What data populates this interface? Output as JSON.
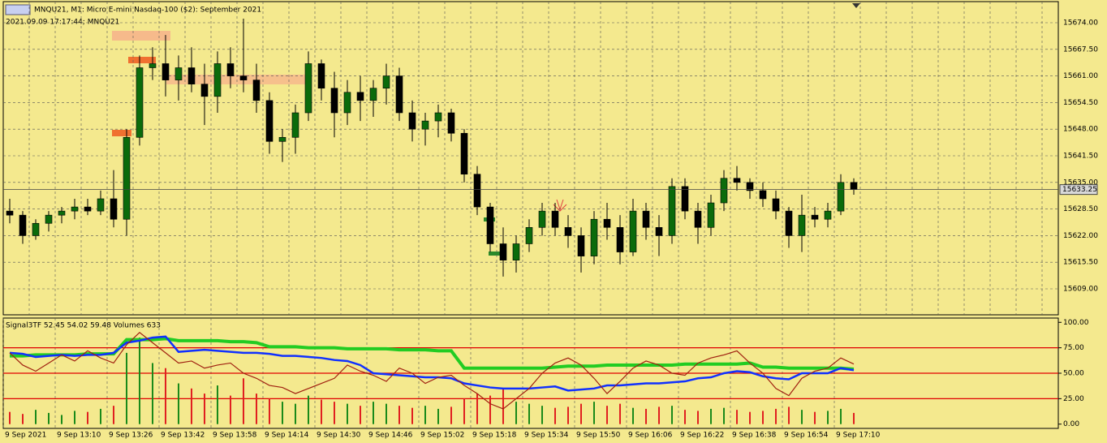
{
  "chart_data": [
    {
      "type": "candlestick",
      "title": "MNQU21, M1:  Micro E-mini Nasdaq-100 ($2): September 2021",
      "subtitle": "2021.09.09 17:17:44; MNQU21",
      "ohlc": [
        [
          15628,
          15631,
          15625,
          15627
        ],
        [
          15627,
          15628,
          15620,
          15622
        ],
        [
          15622,
          15626,
          15621,
          15625
        ],
        [
          15625,
          15628,
          15623,
          15627
        ],
        [
          15627,
          15629,
          15625,
          15628
        ],
        [
          15628,
          15631,
          15626,
          15629
        ],
        [
          15629,
          15631,
          15627,
          15628
        ],
        [
          15628,
          15633,
          15627,
          15631
        ],
        [
          15631,
          15638,
          15624,
          15626
        ],
        [
          15626,
          15648,
          15622,
          15646
        ],
        [
          15646,
          15666,
          15644,
          15663
        ],
        [
          15663,
          15668,
          15660,
          15664
        ],
        [
          15664,
          15671,
          15656,
          15660
        ],
        [
          15660,
          15666,
          15655,
          15663
        ],
        [
          15663,
          15668,
          15657,
          15659
        ],
        [
          15659,
          15664,
          15649,
          15656
        ],
        [
          15656,
          15667,
          15652,
          15664
        ],
        [
          15664,
          15668,
          15658,
          15661
        ],
        [
          15661,
          15675,
          15657,
          15660
        ],
        [
          15660,
          15664,
          15652,
          15655
        ],
        [
          15655,
          15657,
          15642,
          15645
        ],
        [
          15645,
          15648,
          15640,
          15646
        ],
        [
          15646,
          15654,
          15642,
          15652
        ],
        [
          15652,
          15667,
          15650,
          15664
        ],
        [
          15664,
          15665,
          15655,
          15658
        ],
        [
          15658,
          15662,
          15646,
          15652
        ],
        [
          15652,
          15660,
          15649,
          15657
        ],
        [
          15657,
          15661,
          15650,
          15655
        ],
        [
          15655,
          15660,
          15651,
          15658
        ],
        [
          15658,
          15664,
          15654,
          15661
        ],
        [
          15661,
          15663,
          15650,
          15652
        ],
        [
          15652,
          15655,
          15645,
          15648
        ],
        [
          15648,
          15652,
          15644,
          15650
        ],
        [
          15650,
          15654,
          15646,
          15652
        ],
        [
          15652,
          15653,
          15645,
          15647
        ],
        [
          15647,
          15648,
          15635,
          15637
        ],
        [
          15637,
          15639,
          15627,
          15629
        ],
        [
          15629,
          15630,
          15618,
          15620
        ],
        [
          15620,
          15624,
          15612,
          15616
        ],
        [
          15616,
          15622,
          15613,
          15620
        ],
        [
          15620,
          15626,
          15618,
          15624
        ],
        [
          15624,
          15630,
          15622,
          15628
        ],
        [
          15628,
          15630,
          15622,
          15624
        ],
        [
          15624,
          15627,
          15619,
          15622
        ],
        [
          15622,
          15624,
          15613,
          15617
        ],
        [
          15617,
          15628,
          15615,
          15626
        ],
        [
          15626,
          15630,
          15621,
          15624
        ],
        [
          15624,
          15627,
          15615,
          15618
        ],
        [
          15618,
          15631,
          15617,
          15628
        ],
        [
          15628,
          15630,
          15621,
          15624
        ],
        [
          15624,
          15627,
          15617,
          15622
        ],
        [
          15622,
          15636,
          15620,
          15634
        ],
        [
          15634,
          15636,
          15626,
          15628
        ],
        [
          15628,
          15630,
          15620,
          15624
        ],
        [
          15624,
          15632,
          15622,
          15630
        ],
        [
          15630,
          15638,
          15628,
          15636
        ],
        [
          15636,
          15639,
          15633,
          15635
        ],
        [
          15635,
          15636,
          15631,
          15633
        ],
        [
          15633,
          15635,
          15629,
          15631
        ],
        [
          15631,
          15633,
          15626,
          15628
        ],
        [
          15628,
          15629,
          15619,
          15622
        ],
        [
          15622,
          15632,
          15618,
          15627
        ],
        [
          15627,
          15629,
          15624,
          15626
        ],
        [
          15626,
          15630,
          15624,
          15628
        ],
        [
          15628,
          15637,
          15627,
          15635
        ],
        [
          15635,
          15636,
          15632,
          15633.25
        ]
      ],
      "bull_color": "#0b6b0b",
      "bear_color": "#000000",
      "last_price": 15633.25,
      "ylim": [
        15602.66,
        15679.15
      ],
      "yticks": [
        {
          "value": 15674,
          "label": "15674.00"
        },
        {
          "value": 15667.5,
          "label": "15667.50"
        },
        {
          "value": 15661,
          "label": "15661.00"
        },
        {
          "value": 15654.5,
          "label": "15654.50"
        },
        {
          "value": 15648,
          "label": "15648.00"
        },
        {
          "value": 15641.5,
          "label": "15641.50"
        },
        {
          "value": 15635,
          "label": "15635.00"
        },
        {
          "value": 15628.5,
          "label": "15628.50"
        },
        {
          "value": 15622,
          "label": "15622.00"
        },
        {
          "value": 15615.5,
          "label": "15615.50"
        },
        {
          "value": 15609,
          "label": "15609.00"
        }
      ],
      "grid": true
    },
    {
      "type": "indicator",
      "title": "Signal3TF 52.45 54.02 59.48 Volumes 633",
      "series": [
        {
          "color": "#22cc22",
          "values": [
            67,
            67,
            68,
            68,
            68,
            68,
            69,
            69,
            69,
            83,
            83,
            83,
            84,
            82,
            82,
            82,
            82,
            81,
            81,
            80,
            76,
            76,
            76,
            75,
            75,
            75,
            74,
            74,
            74,
            74,
            73,
            73,
            73,
            72,
            72,
            55,
            55,
            55,
            55,
            55,
            55,
            55,
            56,
            57,
            57,
            57,
            58,
            58,
            58,
            58,
            58,
            58,
            59,
            59,
            59,
            59,
            59,
            60,
            56,
            56,
            55,
            55,
            55,
            55,
            55,
            54
          ]
        },
        {
          "color": "#1030ff",
          "values": [
            70,
            69,
            66,
            67,
            68,
            67,
            68,
            68,
            70,
            80,
            82,
            85,
            86,
            71,
            72,
            73,
            72,
            71,
            70,
            70,
            69,
            67,
            67,
            66,
            65,
            63,
            62,
            58,
            50,
            49,
            48,
            47,
            46,
            46,
            45,
            40,
            38,
            36,
            35,
            35,
            35,
            36,
            37,
            33,
            34,
            35,
            38,
            38,
            39,
            40,
            40,
            41,
            42,
            45,
            46,
            50,
            52,
            51,
            47,
            45,
            44,
            50,
            50,
            50,
            55,
            53
          ]
        },
        {
          "color": "#a02010",
          "values": [
            70,
            58,
            52,
            60,
            68,
            62,
            72,
            65,
            60,
            78,
            90,
            80,
            70,
            60,
            62,
            55,
            58,
            60,
            50,
            45,
            38,
            36,
            30,
            35,
            40,
            45,
            58,
            52,
            48,
            42,
            55,
            50,
            40,
            46,
            48,
            38,
            30,
            20,
            15,
            25,
            35,
            50,
            60,
            65,
            58,
            45,
            30,
            42,
            55,
            62,
            58,
            50,
            48,
            60,
            65,
            68,
            72,
            60,
            50,
            35,
            28,
            45,
            52,
            55,
            65,
            59
          ]
        }
      ],
      "volumes": [
        12,
        10,
        14,
        11,
        9,
        13,
        12,
        15,
        18,
        70,
        85,
        60,
        55,
        40,
        35,
        30,
        38,
        28,
        45,
        30,
        25,
        22,
        20,
        28,
        24,
        22,
        20,
        18,
        22,
        20,
        18,
        16,
        18,
        15,
        17,
        25,
        30,
        28,
        35,
        22,
        20,
        18,
        16,
        17,
        20,
        22,
        18,
        20,
        16,
        15,
        17,
        18,
        14,
        13,
        15,
        16,
        14,
        12,
        13,
        15,
        17,
        14,
        12,
        13,
        15,
        11
      ],
      "volume_colors": [
        "#1a8a1a",
        "#e02020"
      ],
      "hlines": [
        75,
        50,
        25
      ],
      "hline_color": "#e00000",
      "ylim": [
        -4.2,
        104.2
      ],
      "yticks": [
        {
          "value": 100,
          "label": "100.00"
        },
        {
          "value": 75,
          "label": "75.00"
        },
        {
          "value": 50,
          "label": "50.00"
        },
        {
          "value": 25,
          "label": "25.00"
        },
        {
          "value": 0,
          "label": "0.00"
        }
      ],
      "xticks": [
        "9 Sep 2021",
        "9 Sep 13:10",
        "9 Sep 13:26",
        "9 Sep 13:42",
        "9 Sep 13:58",
        "9 Sep 14:14",
        "9 Sep 14:30",
        "9 Sep 14:46",
        "9 Sep 15:02",
        "9 Sep 15:18",
        "9 Sep 15:34",
        "9 Sep 15:50",
        "9 Sep 16:06",
        "9 Sep 16:22",
        "9 Sep 16:38",
        "9 Sep 16:54",
        "9 Sep 17:10"
      ]
    }
  ]
}
